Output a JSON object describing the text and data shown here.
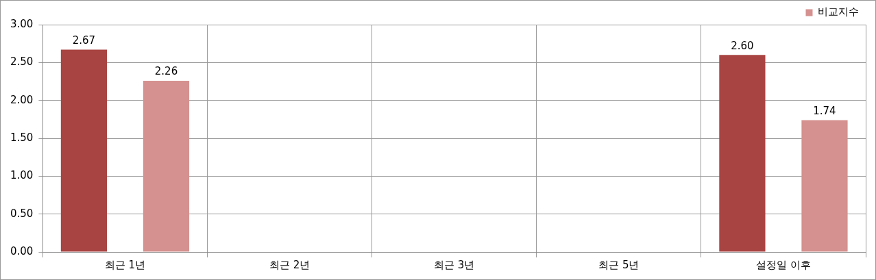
{
  "chart_data": {
    "type": "bar",
    "categories": [
      "최근 1년",
      "최근 2년",
      "최근 3년",
      "최근 5년",
      "설정일 이후"
    ],
    "series": [
      {
        "color": "#a84442",
        "values": [
          2.67,
          null,
          null,
          null,
          2.6
        ],
        "value_labels": [
          "2.67",
          null,
          null,
          null,
          "2.60"
        ]
      },
      {
        "name": "비교지수",
        "color": "#d4918f",
        "values": [
          2.26,
          null,
          null,
          null,
          1.74
        ],
        "value_labels": [
          "2.26",
          null,
          null,
          null,
          "1.74"
        ]
      }
    ],
    "ylim": [
      0,
      3
    ],
    "yticks": [
      {
        "value": 0,
        "label": "0.00"
      },
      {
        "value": 0.5,
        "label": "0.50"
      },
      {
        "value": 1,
        "label": "1.00"
      },
      {
        "value": 1.5,
        "label": "1.50"
      },
      {
        "value": 2,
        "label": "2.00"
      },
      {
        "value": 2.5,
        "label": "2.50"
      },
      {
        "value": 3,
        "label": "3.00"
      }
    ],
    "grid": true,
    "legend": "top right"
  }
}
